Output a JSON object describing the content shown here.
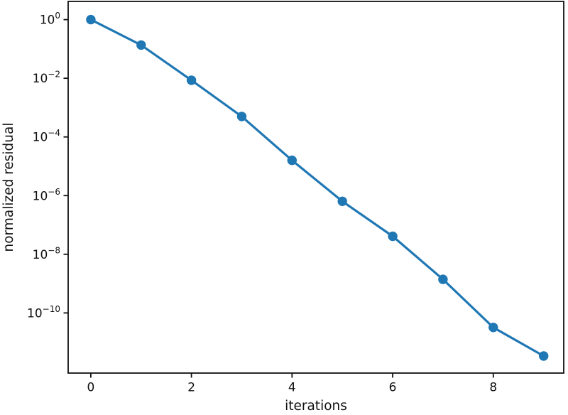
{
  "figure": {
    "background": "#ffffff"
  },
  "chart_data": {
    "type": "line",
    "title": "",
    "xlabel": "iterations",
    "ylabel": "normalized residual",
    "yscale": "log",
    "grid": false,
    "legend": null,
    "line_color": "#1f77b4",
    "marker": "circle",
    "x": [
      0,
      1,
      2,
      3,
      4,
      5,
      6,
      7,
      8,
      9
    ],
    "series": [
      {
        "name": "normalized residual",
        "values": [
          1.0,
          0.136,
          0.0086,
          0.0005,
          1.6e-05,
          6.4e-07,
          4.1e-08,
          1.4e-09,
          3.2e-11,
          3.4e-12
        ]
      }
    ],
    "xlim": [
      -0.45,
      9.4
    ],
    "ylim_log": [
      -12.05,
      0.62
    ],
    "xticks": [
      {
        "value": 0,
        "label": "0"
      },
      {
        "value": 2,
        "label": "2"
      },
      {
        "value": 4,
        "label": "4"
      },
      {
        "value": 6,
        "label": "6"
      },
      {
        "value": 8,
        "label": "8"
      }
    ],
    "ytick_base": "10",
    "yticks": [
      {
        "exp": 0,
        "sup": "0"
      },
      {
        "exp": -2,
        "sup": "−2"
      },
      {
        "exp": -4,
        "sup": "−4"
      },
      {
        "exp": -6,
        "sup": "−6"
      },
      {
        "exp": -8,
        "sup": "−8"
      },
      {
        "exp": -10,
        "sup": "−10"
      }
    ]
  }
}
